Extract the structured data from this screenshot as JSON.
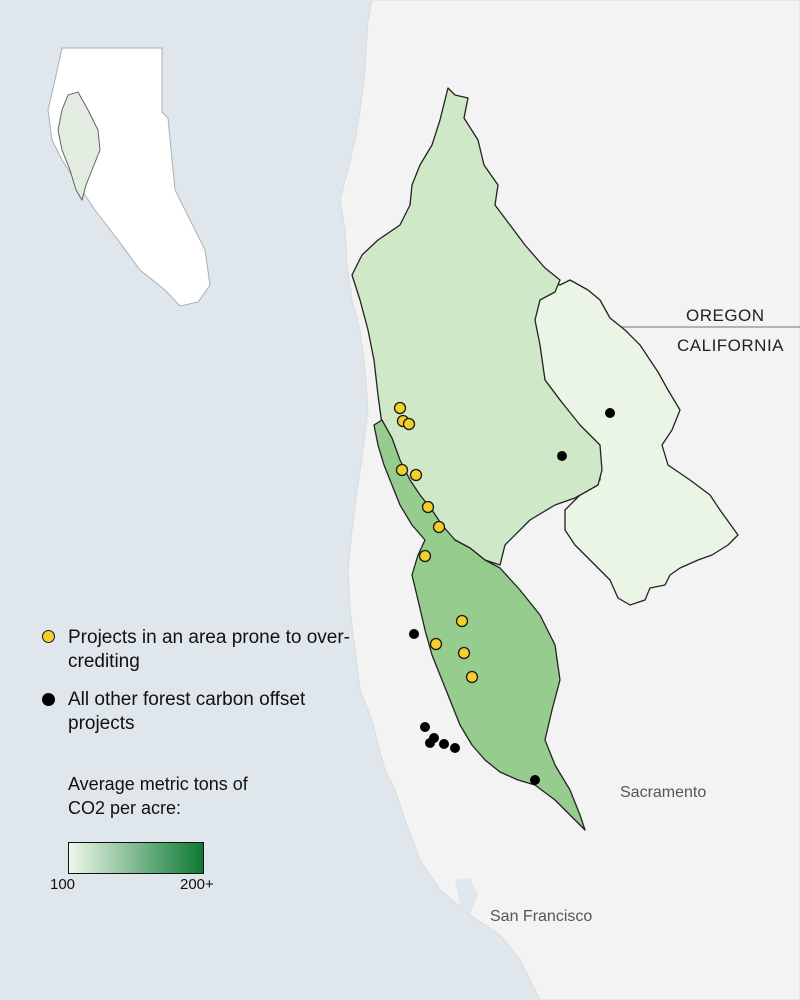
{
  "map": {
    "labels": {
      "oregon": "OREGON",
      "california": "CALIFORNIA",
      "sacramento": "Sacramento",
      "san_francisco": "San Francisco"
    },
    "colors": {
      "ocean": "#dfe7ec",
      "land": "#f2f3f2",
      "region_light": "#eaf5e6",
      "region_mid": "#cfe8c7",
      "region_dark": "#96cc8e",
      "outline": "#222222",
      "yellow_dot": "#f2cf2a",
      "black_dot": "#000000"
    }
  },
  "legend": {
    "yellow_label": "Projects in an area prone to over-crediting",
    "black_label": "All other forest carbon offset projects",
    "scale_title": "Average metric tons of CO2 per acre:",
    "scale_min": "100",
    "scale_max": "200+",
    "gradient_start": "#eef7ea",
    "gradient_end": "#0e7a34"
  }
}
